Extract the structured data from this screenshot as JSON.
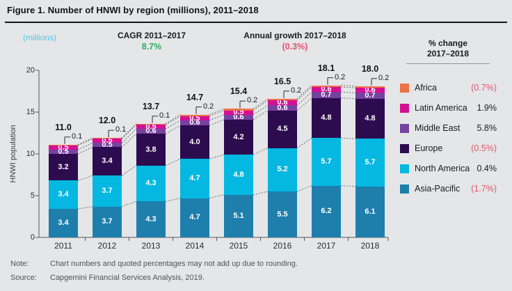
{
  "title": "Figure 1. Number of HNWI by region (millions), 2011–2018",
  "header": {
    "units_label": "(millions)",
    "cagr_label": "CAGR 2011–2017",
    "cagr_value": "8.7%",
    "growth_label": "Annual growth 2017–2018",
    "growth_value": "(0.3%)"
  },
  "legend": {
    "title_line1": "% change",
    "title_line2": "2017–2018",
    "items": [
      {
        "label": "Africa",
        "pct": "(0.7%)",
        "color": "#EE7045",
        "negative": true
      },
      {
        "label": "Latin America",
        "pct": "1.9%",
        "color": "#D40F93",
        "negative": false
      },
      {
        "label": "Middle East",
        "pct": "5.8%",
        "color": "#7642A0",
        "negative": false
      },
      {
        "label": "Europe",
        "pct": "(0.5%)",
        "color": "#2C0B4E",
        "negative": true
      },
      {
        "label": "North America",
        "pct": "0.4%",
        "color": "#04B8E2",
        "negative": false
      },
      {
        "label": "Asia-Pacific",
        "pct": "(1.7%)",
        "color": "#1E7FAD",
        "negative": true
      }
    ]
  },
  "chart_data": {
    "type": "bar",
    "stacked": true,
    "title": "Number of HNWI by region (millions), 2011–2018",
    "xlabel": "",
    "ylabel": "HNWI population",
    "ylim": [
      0,
      20
    ],
    "yticks": [
      0,
      5,
      10,
      15,
      20
    ],
    "grid": false,
    "legend_position": "right",
    "categories": [
      "2011",
      "2012",
      "2013",
      "2014",
      "2015",
      "2016",
      "2017",
      "2018"
    ],
    "totals": [
      "11.0",
      "12.0",
      "13.7",
      "14.7",
      "15.4",
      "16.5",
      "18.1",
      "18.0"
    ],
    "series": [
      {
        "name": "Asia-Pacific",
        "color": "#1E7FAD",
        "values": [
          3.4,
          3.7,
          4.3,
          4.7,
          5.1,
          5.5,
          6.2,
          6.1
        ]
      },
      {
        "name": "North America",
        "color": "#04B8E2",
        "values": [
          3.4,
          3.7,
          4.3,
          4.7,
          4.8,
          5.2,
          5.7,
          5.7
        ]
      },
      {
        "name": "Europe",
        "color": "#2C0B4E",
        "values": [
          3.2,
          3.4,
          3.8,
          4.0,
          4.2,
          4.5,
          4.8,
          4.8
        ]
      },
      {
        "name": "Middle East",
        "color": "#7642A0",
        "values": [
          0.5,
          0.5,
          0.6,
          0.6,
          0.6,
          0.6,
          0.7,
          0.7
        ]
      },
      {
        "name": "Latin America",
        "color": "#D40F93",
        "values": [
          0.5,
          0.5,
          0.5,
          0.5,
          0.5,
          0.6,
          0.6,
          0.6
        ]
      },
      {
        "name": "Africa",
        "color": "#EE7045",
        "values": [
          0.1,
          0.1,
          0.1,
          0.2,
          0.2,
          0.2,
          0.2,
          0.2
        ],
        "label_as_callout": true
      }
    ]
  },
  "footer": {
    "note_label": "Note:",
    "note_text": "Chart numbers and quoted percentages may not add up due to rounding.",
    "source_label": "Source:",
    "source_text": "Capgemini Financial Services Analysis, 2019."
  },
  "colors": {
    "background": "#E5E6E8",
    "accent_blue": "#4FC8E8",
    "positive_green": "#2BAE60",
    "negative_red": "#E0536E",
    "axis": "#55565A",
    "connector": "#6E6F71"
  }
}
